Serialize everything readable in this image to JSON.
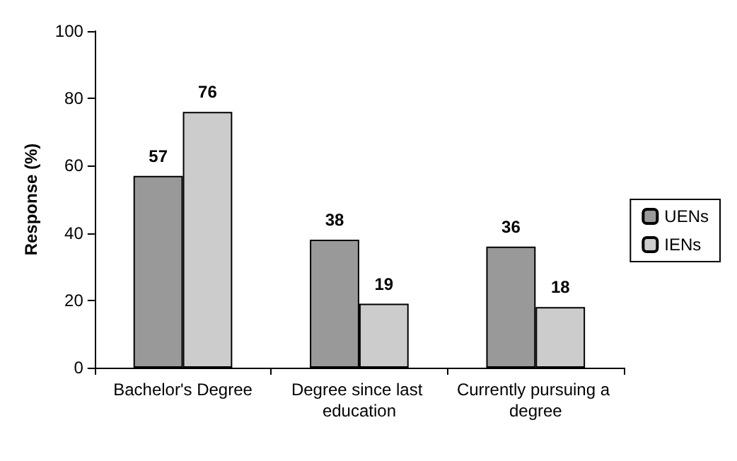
{
  "chart_data": {
    "type": "bar",
    "ylabel": "Response (%)",
    "categories": [
      "Bachelor's Degree",
      "Degree since last education",
      "Currently pursuing a degree"
    ],
    "series": [
      {
        "name": "UENs",
        "color": "#999999",
        "values": [
          57,
          38,
          36
        ]
      },
      {
        "name": "IENs",
        "color": "#cccccc",
        "values": [
          76,
          19,
          18
        ]
      }
    ],
    "ylim": [
      0,
      100
    ],
    "yticks": [
      0,
      20,
      40,
      60,
      80,
      100
    ],
    "grid": false,
    "legend": "right",
    "data_labels": true
  }
}
